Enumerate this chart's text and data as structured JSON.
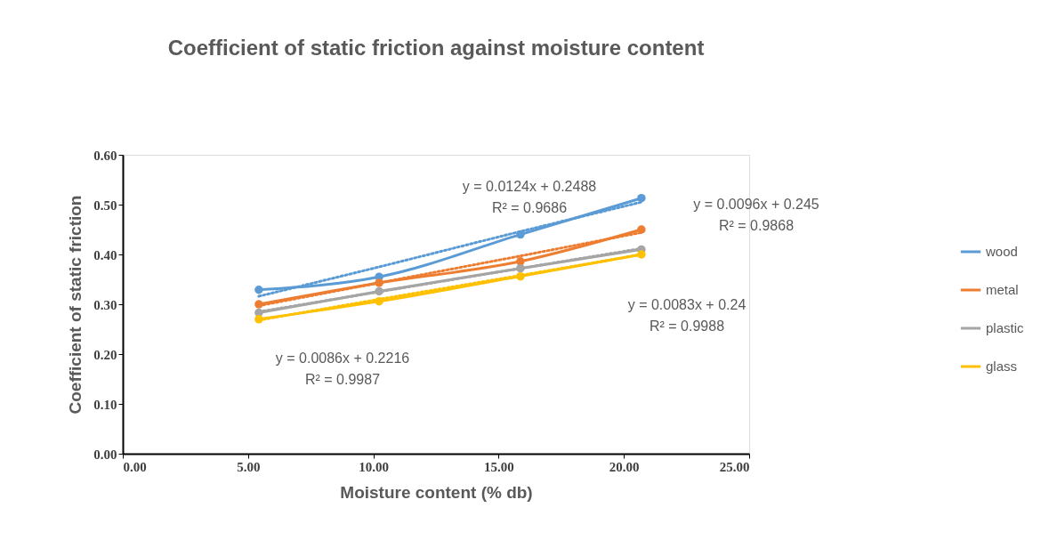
{
  "chart_data": {
    "type": "line",
    "title": "Coefficient of static friction against moisture content",
    "xlabel": "Moisture content (% db)",
    "ylabel": "Coefficient of static friction",
    "x": [
      5.43,
      10.23,
      15.87,
      20.7
    ],
    "series": [
      {
        "name": "wood",
        "color": "#5b9bd5",
        "values": [
          0.329,
          0.355,
          0.44,
          0.513
        ]
      },
      {
        "name": "metal",
        "color": "#ed7d31",
        "values": [
          0.3,
          0.343,
          0.386,
          0.45
        ]
      },
      {
        "name": "plastic",
        "color": "#a5a5a5",
        "values": [
          0.283,
          0.326,
          0.372,
          0.41
        ]
      },
      {
        "name": "glass",
        "color": "#ffc000",
        "values": [
          0.27,
          0.306,
          0.356,
          0.4
        ]
      },
      {
        "type": "line",
        "line_style": "dotted",
        "marker": "none",
        "color": "#5b9bd5",
        "values": [
          0.316,
          0.375,
          0.446,
          0.505
        ]
      },
      {
        "type": "line",
        "line_style": "dotted",
        "marker": "none",
        "color": "#ed7d31",
        "values": [
          0.297,
          0.343,
          0.397,
          0.444
        ]
      },
      {
        "type": "line",
        "line_style": "dotted",
        "marker": "none",
        "color": "#a5a5a5",
        "values": [
          0.285,
          0.325,
          0.372,
          0.412
        ]
      },
      {
        "type": "line",
        "line_style": "dotted",
        "marker": "none",
        "color": "#ffc000",
        "values": [
          0.268,
          0.31,
          0.358,
          0.4
        ]
      }
    ],
    "annotations": [
      "y = 0.0124x + 0.2488\nR² = 0.9686",
      "y = 0.0096x + 0.245\nR² = 0.9868",
      "y = 0.0083x + 0.24\nR² = 0.9988",
      "y = 0.0086x + 0.2216\nR² = 0.9987"
    ],
    "xlim": [
      0,
      25
    ],
    "xticks": [
      {
        "value": 0,
        "label": "0.00"
      },
      {
        "value": 5,
        "label": "5.00"
      },
      {
        "value": 10,
        "label": "10.00"
      },
      {
        "value": 15,
        "label": "15.00"
      },
      {
        "value": 20,
        "label": "20.00"
      },
      {
        "value": 25,
        "label": "25.00"
      }
    ],
    "ylim": [
      0,
      0.6
    ],
    "yticks": [
      {
        "value": 0,
        "label": "0.00"
      },
      {
        "value": 0.1,
        "label": "0.10"
      },
      {
        "value": 0.2,
        "label": "0.20"
      },
      {
        "value": 0.3,
        "label": "0.30"
      },
      {
        "value": 0.4,
        "label": "0.40"
      },
      {
        "value": 0.5,
        "label": "0.50"
      },
      {
        "value": 0.6,
        "label": "0.60"
      }
    ],
    "grid": false,
    "legend": "right",
    "marker": "circle",
    "line_style": "solid"
  }
}
